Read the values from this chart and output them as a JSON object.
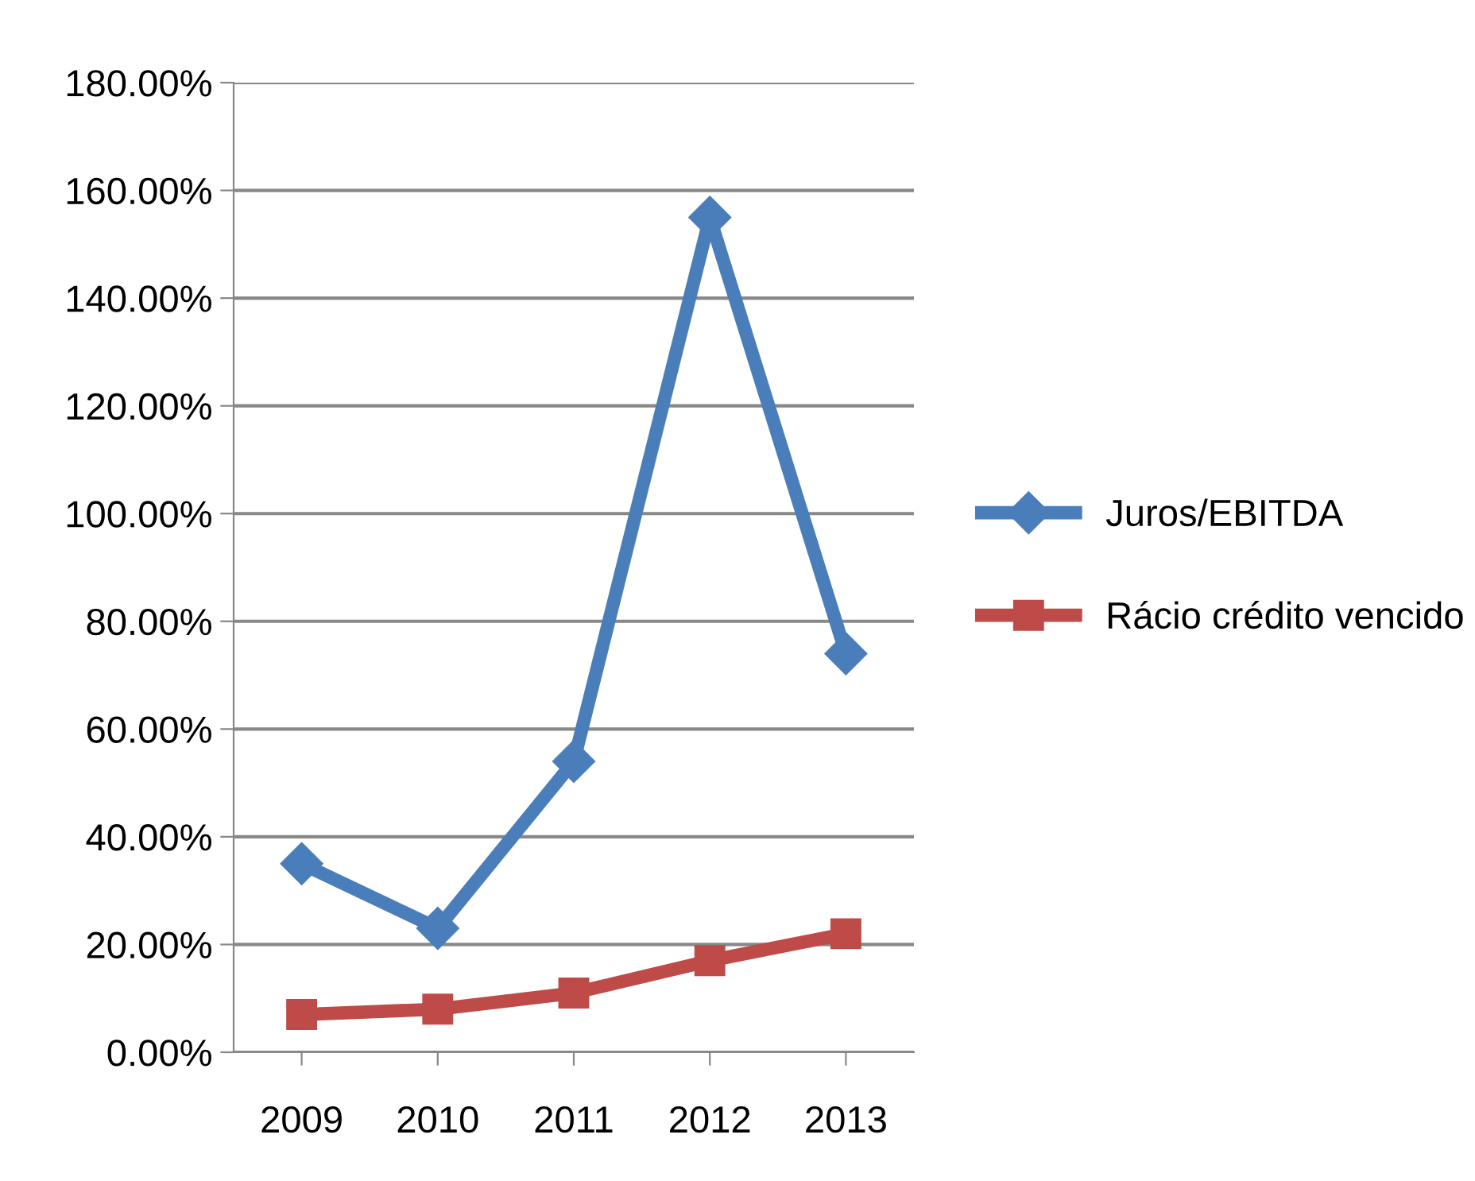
{
  "chart_data": {
    "type": "line",
    "categories": [
      "2009",
      "2010",
      "2011",
      "2012",
      "2013"
    ],
    "series": [
      {
        "name": "Juros/EBITDA",
        "color": "#4a7ebb",
        "marker": "diamond",
        "values": [
          35,
          23,
          54,
          155,
          74
        ]
      },
      {
        "name": "Rácio crédito vencido",
        "color": "#be4b48",
        "marker": "square",
        "values": [
          7,
          8,
          11,
          17,
          22
        ]
      }
    ],
    "ylim": [
      0,
      180
    ],
    "yticks": [
      {
        "value": 0,
        "label": "0.00%"
      },
      {
        "value": 20,
        "label": "20.00%"
      },
      {
        "value": 40,
        "label": "40.00%"
      },
      {
        "value": 60,
        "label": "60.00%"
      },
      {
        "value": 80,
        "label": "80.00%"
      },
      {
        "value": 100,
        "label": "100.00%"
      },
      {
        "value": 120,
        "label": "120.00%"
      },
      {
        "value": 140,
        "label": "140.00%"
      },
      {
        "value": 160,
        "label": "160.00%"
      },
      {
        "value": 180,
        "label": "180.00%"
      }
    ],
    "grid": "y",
    "legend": "right",
    "line_style": "solid"
  }
}
